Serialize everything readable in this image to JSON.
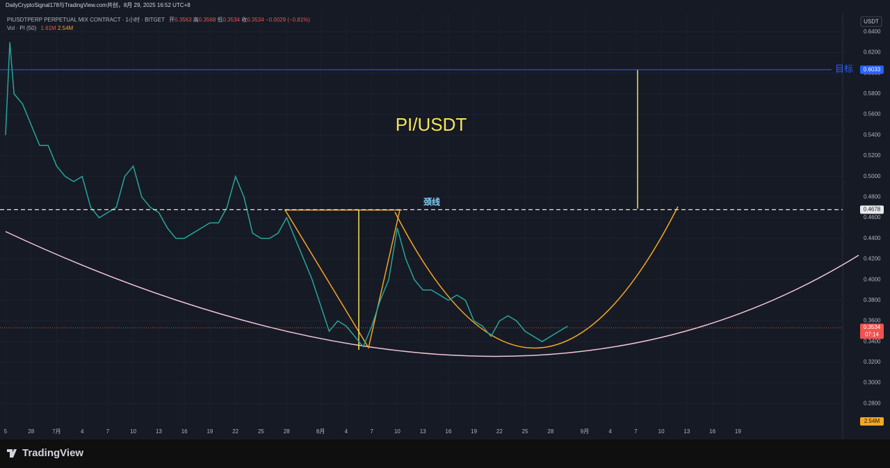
{
  "chart_data": {
    "type": "line",
    "header": {
      "credit": "DailyCryptoSignal178与TradingView.com共创，8月 29, 2025 16:52 UTC+8",
      "symbol": "PIUSDTPERP PERPETUAL MIX CONTRACT · 1小时 · BITGET",
      "open_label": "开",
      "open": "0.3563",
      "high_label": "高",
      "high": "0.3568",
      "low_label": "低",
      "low": "0.3534",
      "close_label": "收",
      "close": "0.3534",
      "change": "−0.0029 (−0.81%)",
      "volume_title": "Vol · PI (50)",
      "volume": "1.61M",
      "volume_ma": "2.54M"
    },
    "currency": "USDT",
    "title": "PI/USDT",
    "color": "#26a69a",
    "x": [
      0,
      0.5,
      1,
      2,
      3,
      4,
      5,
      6,
      7,
      8,
      9,
      10,
      11,
      12,
      13,
      14,
      15,
      16,
      17,
      18,
      19,
      20,
      21,
      22,
      23,
      24,
      25,
      26,
      27,
      28,
      29,
      30,
      31,
      32,
      33,
      34,
      35,
      36,
      37,
      38,
      39,
      40,
      41,
      42,
      43,
      44,
      45,
      46,
      47,
      48,
      49,
      50,
      51,
      52,
      53,
      54,
      55,
      56,
      57,
      58,
      59,
      60,
      61,
      62,
      63,
      64,
      65,
      66
    ],
    "values": [
      0.54,
      0.63,
      0.58,
      0.57,
      0.55,
      0.53,
      0.53,
      0.51,
      0.5,
      0.495,
      0.5,
      0.47,
      0.46,
      0.465,
      0.47,
      0.5,
      0.51,
      0.48,
      0.47,
      0.465,
      0.45,
      0.44,
      0.44,
      0.445,
      0.45,
      0.455,
      0.455,
      0.47,
      0.5,
      0.48,
      0.445,
      0.44,
      0.44,
      0.445,
      0.46,
      0.44,
      0.42,
      0.4,
      0.375,
      0.35,
      0.36,
      0.355,
      0.345,
      0.335,
      0.355,
      0.38,
      0.4,
      0.45,
      0.42,
      0.4,
      0.39,
      0.39,
      0.385,
      0.38,
      0.385,
      0.38,
      0.36,
      0.355,
      0.345,
      0.36,
      0.365,
      0.36,
      0.35,
      0.345,
      0.34,
      0.345,
      0.35,
      0.355
    ],
    "xlim": [
      -0.65,
      98.3
    ],
    "xticks": [
      {
        "value": 0,
        "label": "5"
      },
      {
        "value": 3,
        "label": "28"
      },
      {
        "value": 6,
        "label": "7月"
      },
      {
        "value": 9,
        "label": "4"
      },
      {
        "value": 12,
        "label": "7"
      },
      {
        "value": 15,
        "label": "10"
      },
      {
        "value": 18,
        "label": "13"
      },
      {
        "value": 21,
        "label": "16"
      },
      {
        "value": 24,
        "label": "19"
      },
      {
        "value": 27,
        "label": "22"
      },
      {
        "value": 30,
        "label": "25"
      },
      {
        "value": 33,
        "label": "28"
      },
      {
        "value": 37,
        "label": "8月"
      },
      {
        "value": 40,
        "label": "4"
      },
      {
        "value": 43,
        "label": "7"
      },
      {
        "value": 46,
        "label": "10"
      },
      {
        "value": 49,
        "label": "13"
      },
      {
        "value": 52,
        "label": "16"
      },
      {
        "value": 55,
        "label": "19"
      },
      {
        "value": 58,
        "label": "22"
      },
      {
        "value": 61,
        "label": "25"
      },
      {
        "value": 64,
        "label": "28"
      },
      {
        "value": 68,
        "label": "9月"
      },
      {
        "value": 71,
        "label": "4"
      },
      {
        "value": 74,
        "label": "7"
      },
      {
        "value": 77,
        "label": "10"
      },
      {
        "value": 80,
        "label": "13"
      },
      {
        "value": 83,
        "label": "16"
      },
      {
        "value": 86,
        "label": "19"
      }
    ],
    "ylim": [
      0.26,
      0.652
    ],
    "yticks": [
      {
        "value": 0.28,
        "label": "0.2800"
      },
      {
        "value": 0.3,
        "label": "0.3000"
      },
      {
        "value": 0.32,
        "label": "0.3200"
      },
      {
        "value": 0.34,
        "label": "0.3400"
      },
      {
        "value": 0.36,
        "label": "0.3600"
      },
      {
        "value": 0.38,
        "label": "0.3800"
      },
      {
        "value": 0.4,
        "label": "0.4000"
      },
      {
        "value": 0.42,
        "label": "0.4200"
      },
      {
        "value": 0.44,
        "label": "0.4400"
      },
      {
        "value": 0.46,
        "label": "0.4600"
      },
      {
        "value": 0.48,
        "label": "0.4800"
      },
      {
        "value": 0.5,
        "label": "0.5000"
      },
      {
        "value": 0.52,
        "label": "0.5200"
      },
      {
        "value": 0.54,
        "label": "0.5400"
      },
      {
        "value": 0.56,
        "label": "0.5600"
      },
      {
        "value": 0.58,
        "label": "0.5800"
      },
      {
        "value": 0.6,
        "label": "0.6000"
      },
      {
        "value": 0.62,
        "label": "0.6200"
      },
      {
        "value": 0.64,
        "label": "0.6400"
      }
    ],
    "grid": true,
    "target": {
      "label": "目标",
      "value": 0.6033
    },
    "neckline": {
      "label": "颈线",
      "value": 0.4678
    },
    "last_price": {
      "value": 0.3534,
      "countdown": "07:14"
    },
    "brand": "TradingView"
  }
}
